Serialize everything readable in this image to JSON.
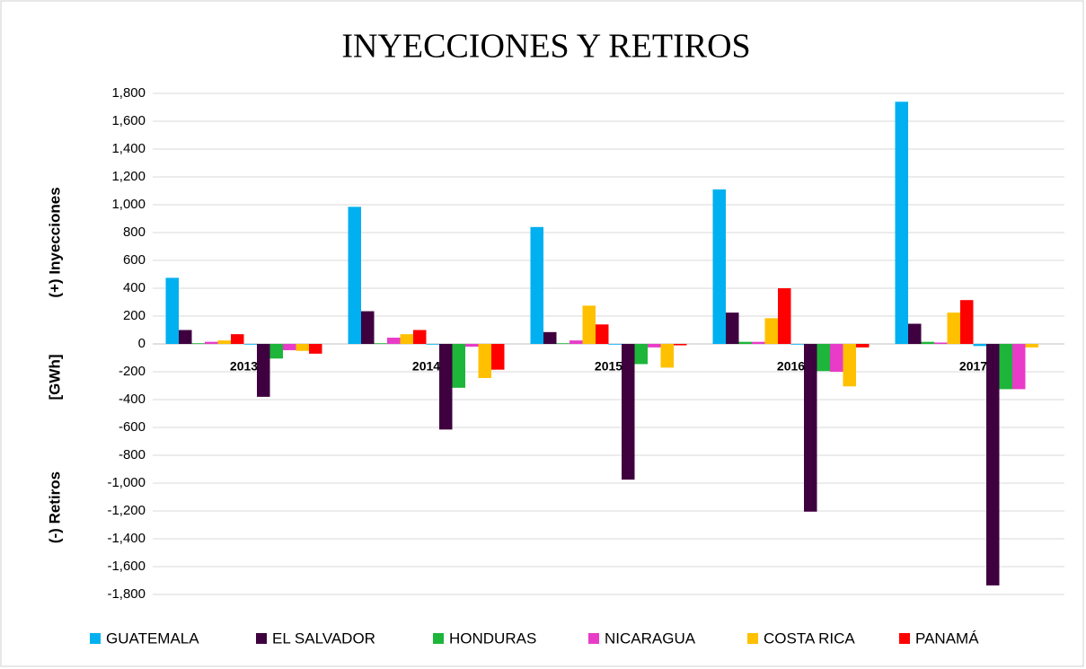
{
  "chart_data": {
    "type": "bar",
    "title": "INYECCIONES Y RETIROS",
    "y_label_top": "(+) Inyecciones",
    "y_label_unit": "[GWh]",
    "y_label_bottom": "(-) Retiros",
    "categories": [
      "2013",
      "2014",
      "2015",
      "2016",
      "2017"
    ],
    "series": [
      {
        "name": "GUATEMALA",
        "color": "#00b0f0",
        "values": [
          475,
          985,
          840,
          1110,
          1740
        ],
        "withdrawals": [
          -5,
          -5,
          -5,
          -5,
          -15
        ]
      },
      {
        "name": "EL SALVADOR",
        "color": "#3f0040",
        "values": [
          100,
          235,
          85,
          225,
          145
        ],
        "withdrawals": [
          -380,
          -615,
          -975,
          -1205,
          -1735
        ]
      },
      {
        "name": "HONDURAS",
        "color": "#1db53a",
        "values": [
          5,
          5,
          5,
          15,
          15
        ],
        "withdrawals": [
          -105,
          -315,
          -145,
          -195,
          -325
        ]
      },
      {
        "name": "NICARAGUA",
        "color": "#e83cc8",
        "values": [
          15,
          45,
          25,
          15,
          10
        ],
        "withdrawals": [
          -45,
          -20,
          -25,
          -200,
          -325
        ]
      },
      {
        "name": "COSTA RICA",
        "color": "#ffc000",
        "values": [
          25,
          70,
          275,
          185,
          225
        ],
        "withdrawals": [
          -50,
          -245,
          -170,
          -305,
          -25
        ]
      },
      {
        "name": "PANAMÁ",
        "color": "#ff0000",
        "values": [
          70,
          100,
          140,
          400,
          315
        ],
        "withdrawals": [
          -70,
          -185,
          -10,
          -25,
          0
        ]
      }
    ],
    "ylim": [
      -1800,
      1800
    ],
    "yticks": [
      {
        "value": -1800,
        "label": "-1,800"
      },
      {
        "value": -1600,
        "label": "-1,600"
      },
      {
        "value": -1400,
        "label": "-1,400"
      },
      {
        "value": -1200,
        "label": "-1,200"
      },
      {
        "value": -1000,
        "label": "-1,000"
      },
      -800,
      -600,
      -400,
      -200,
      0,
      200,
      400,
      600,
      800,
      {
        "value": 1000,
        "label": "1,000"
      },
      {
        "value": 1200,
        "label": "1,200"
      },
      {
        "value": 1400,
        "label": "1,400"
      },
      {
        "value": 1600,
        "label": "1,600"
      },
      {
        "value": 1800,
        "label": "1,800"
      }
    ],
    "grid": true,
    "legend": "bottom"
  }
}
